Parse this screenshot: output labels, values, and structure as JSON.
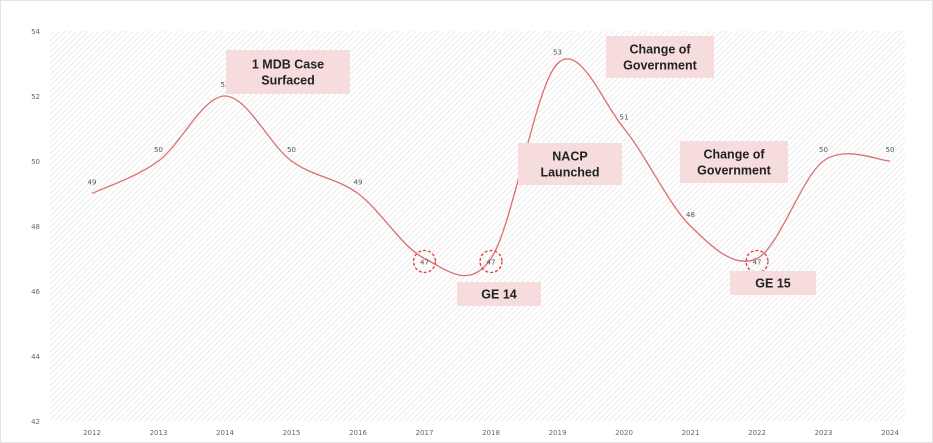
{
  "chart_data": {
    "type": "line",
    "x": [
      "2012",
      "2013",
      "2014",
      "2015",
      "2016",
      "2017",
      "2018",
      "2019",
      "2020",
      "2021",
      "2022",
      "2023",
      "2024"
    ],
    "series": [
      {
        "values": [
          49,
          50,
          52,
          50,
          49,
          47,
          47,
          53,
          51,
          48,
          47,
          50,
          50
        ],
        "color": "#e06c6c"
      }
    ],
    "ylim": [
      42,
      54
    ],
    "yticks": [
      "42",
      "44",
      "46",
      "48",
      "50",
      "52",
      "54"
    ],
    "grid": "diagonal-hatch",
    "highlighted_points": [
      "2017",
      "2018",
      "2022"
    ],
    "annotations": [
      {
        "lines": [
          "1 MDB Case",
          "Surfaced"
        ],
        "near": "2014"
      },
      {
        "lines": [
          "GE 14"
        ],
        "near": "2017"
      },
      {
        "lines": [
          "NACP",
          "Launched"
        ],
        "near": "2018"
      },
      {
        "lines": [
          "Change of",
          "Government"
        ],
        "near": "2019"
      },
      {
        "lines": [
          "Change of",
          "Government"
        ],
        "near": "2021"
      },
      {
        "lines": [
          "GE 15"
        ],
        "near": "2022"
      }
    ],
    "colors": {
      "line": "#e06c6c",
      "annotation_bg": "#f6dcdc",
      "highlight": "#e03c3c"
    }
  }
}
